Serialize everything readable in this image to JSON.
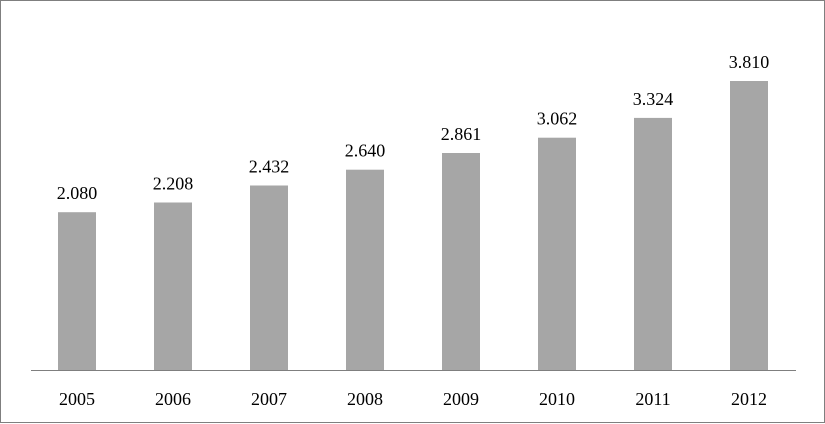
{
  "chart_data": {
    "type": "bar",
    "title": "",
    "xlabel": "",
    "ylabel": "",
    "categories": [
      "2005",
      "2006",
      "2007",
      "2008",
      "2009",
      "2010",
      "2011",
      "2012"
    ],
    "values": [
      2.08,
      2.208,
      2.432,
      2.64,
      2.861,
      3.062,
      3.324,
      3.81
    ],
    "value_labels": [
      "2.080",
      "2.208",
      "2.432",
      "2.640",
      "2.861",
      "3.062",
      "3.324",
      "3.810"
    ],
    "ylim": [
      0,
      4.2
    ],
    "grid": false,
    "legend": "none",
    "colors": {
      "bar": "#a6a6a6",
      "axis": "#7f7f7f",
      "border": "#7f7f7f",
      "text": "#000000"
    }
  }
}
